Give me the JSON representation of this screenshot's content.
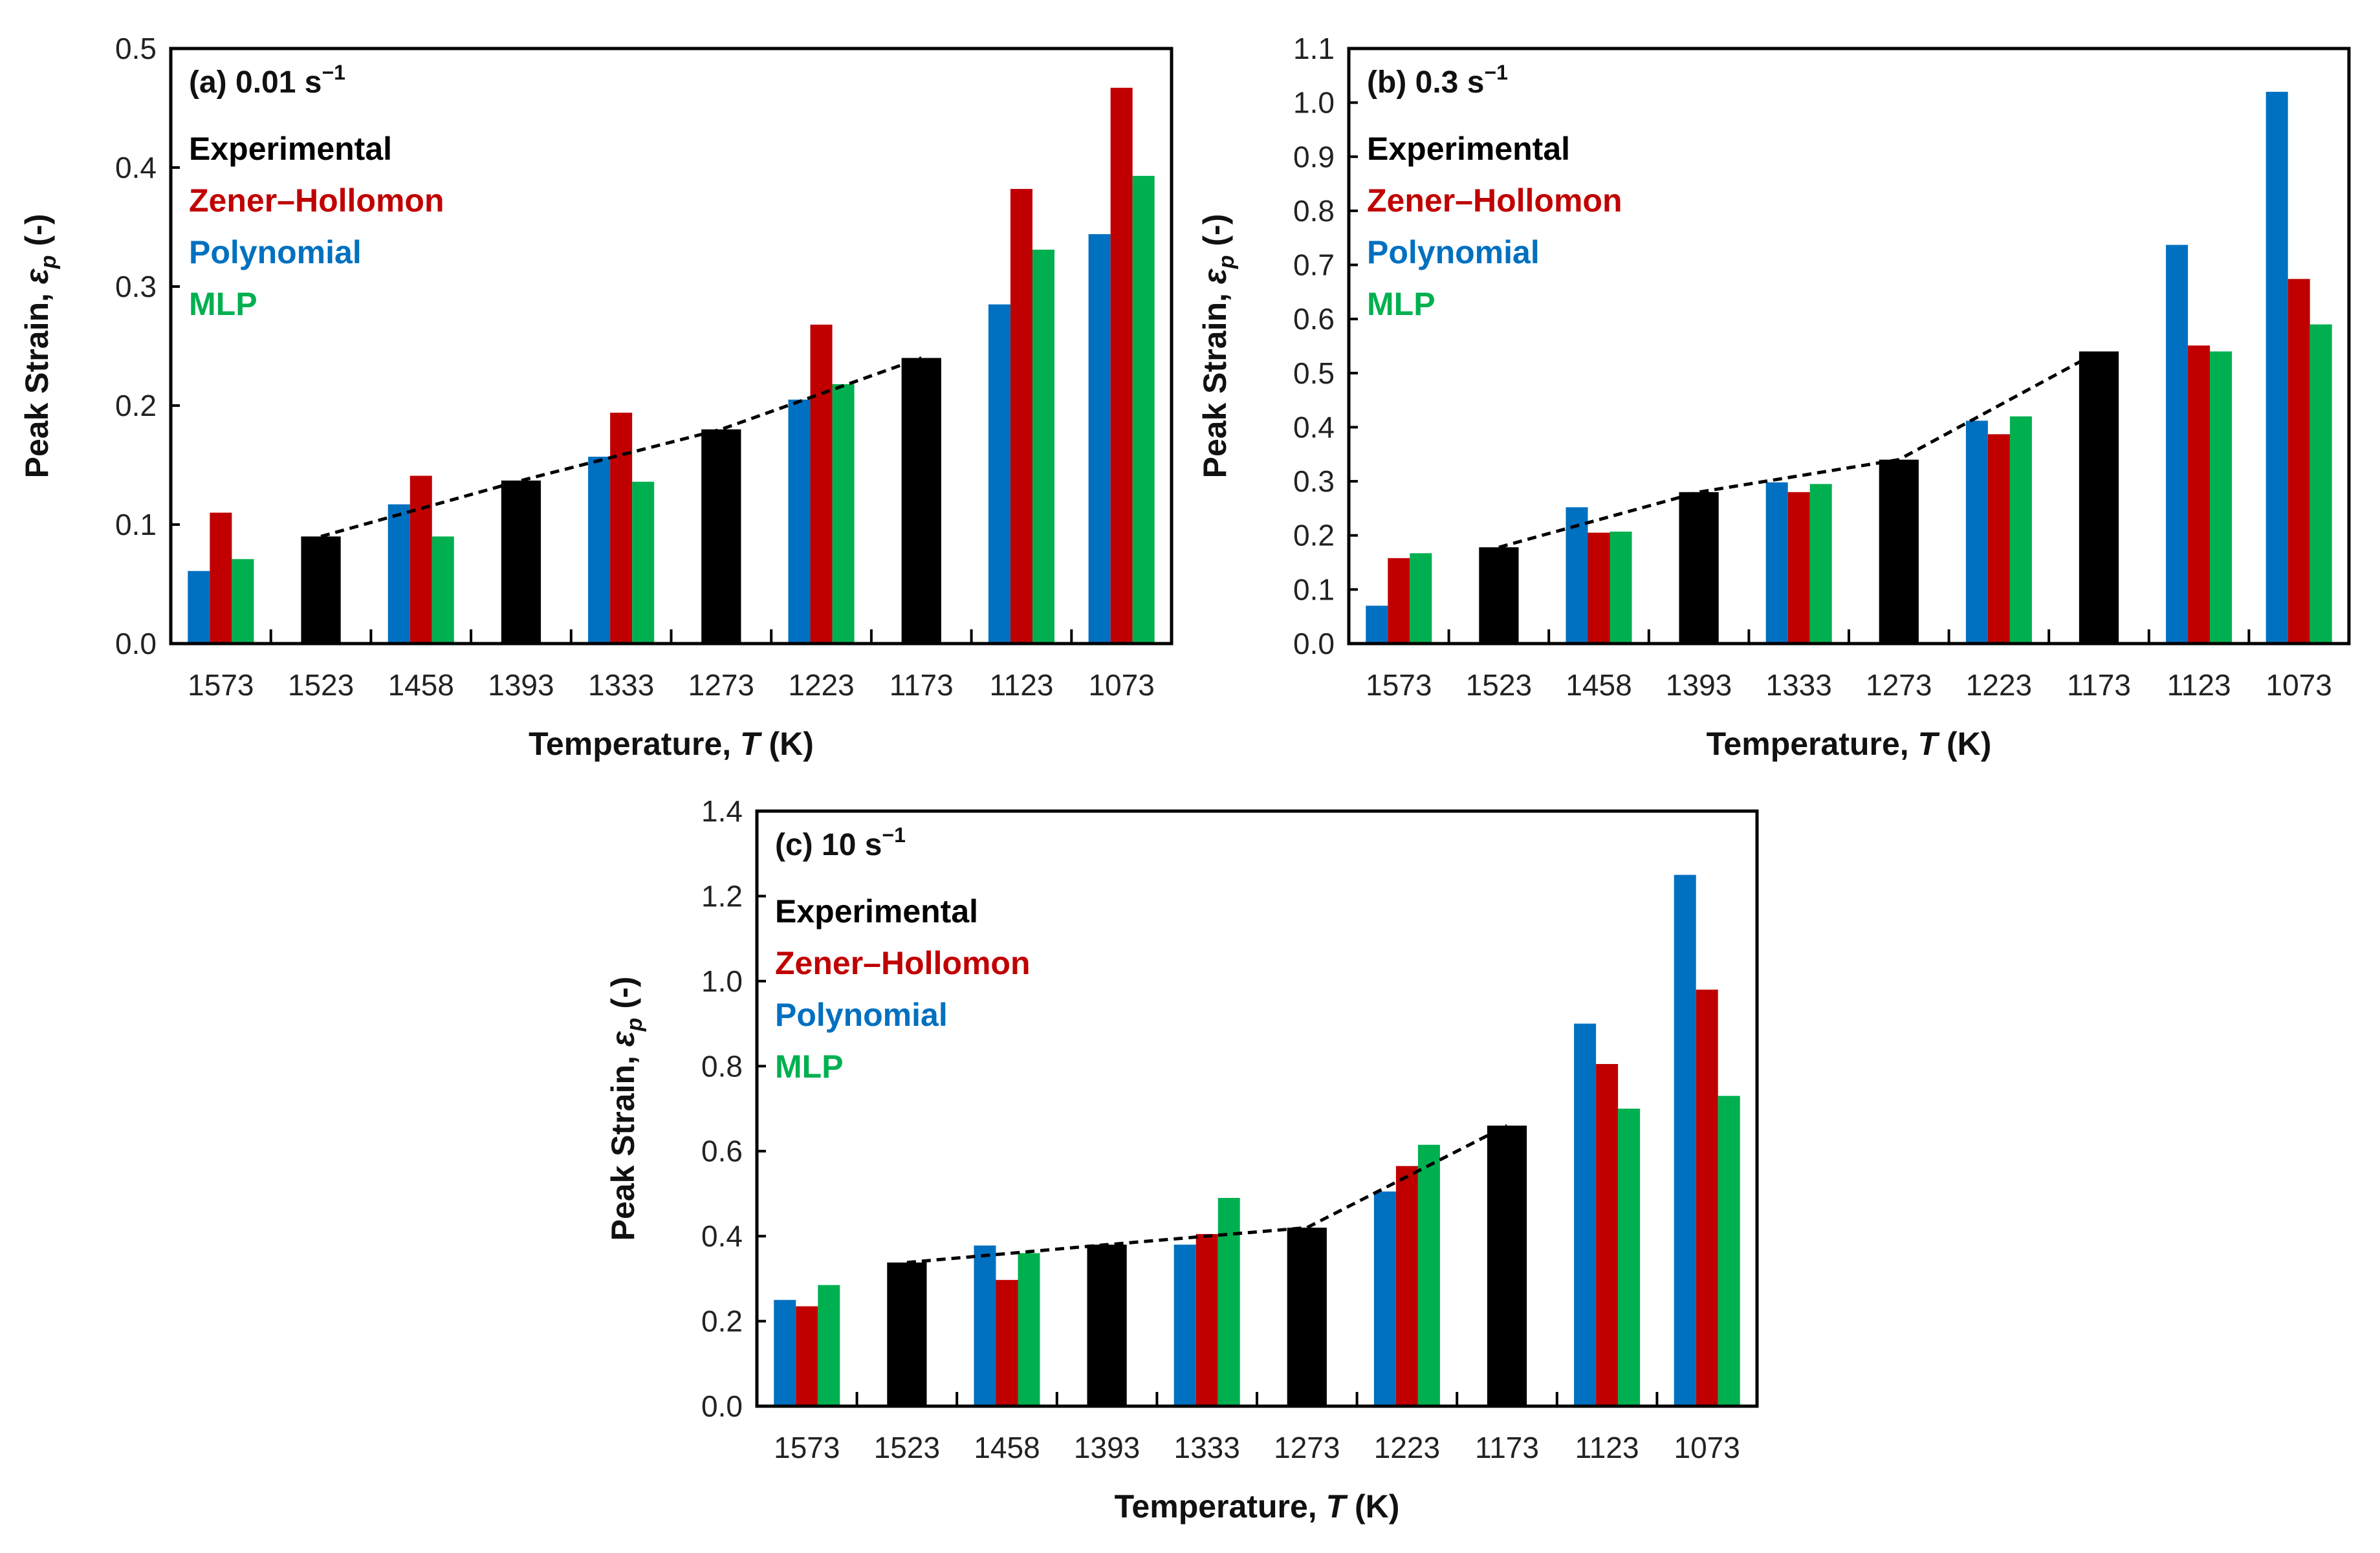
{
  "colors": {
    "Experimental": "#000000",
    "Zener–Hollomon": "#c00000",
    "Polynomial": "#0070c0",
    "MLP": "#00b050"
  },
  "chart_data": [
    {
      "type": "bar",
      "panel_label": "(a) 0.01 s",
      "panel_sup": "−1",
      "title": "(a) 0.01 s−1",
      "xlabel": {
        "pre": "Temperature, ",
        "var": "T",
        "post": " (K)"
      },
      "ylabel": {
        "pre": "Peak Strain, ",
        "var": "ε",
        "sub": "p",
        "post": " (-)"
      },
      "ylim": [
        0,
        0.5
      ],
      "yticks": [
        "0.0",
        "0.1",
        "0.2",
        "0.3",
        "0.4",
        "0.5"
      ],
      "legend": [
        "Experimental",
        "Zener–Hollomon",
        "Polynomial",
        "MLP"
      ],
      "legend_position": "top-left",
      "categories": [
        "1573",
        "1523",
        "1458",
        "1393",
        "1333",
        "1273",
        "1223",
        "1173",
        "1123",
        "1073"
      ],
      "series": [
        {
          "name": "Experimental",
          "values": [
            null,
            0.09,
            null,
            0.137,
            null,
            0.18,
            null,
            0.24,
            null,
            null
          ]
        },
        {
          "name": "Polynomial",
          "values": [
            0.061,
            null,
            0.117,
            null,
            0.157,
            null,
            0.205,
            null,
            0.285,
            0.344
          ]
        },
        {
          "name": "Zener–Hollomon",
          "values": [
            0.11,
            null,
            0.141,
            null,
            0.194,
            null,
            0.268,
            null,
            0.382,
            0.467
          ]
        },
        {
          "name": "MLP",
          "values": [
            0.071,
            null,
            0.09,
            null,
            0.136,
            null,
            0.218,
            null,
            0.331,
            0.393
          ]
        }
      ],
      "dashed_line": {
        "categories": [
          "1523",
          "1393",
          "1273",
          "1173"
        ],
        "values": [
          0.09,
          0.137,
          0.18,
          0.24
        ]
      }
    },
    {
      "type": "bar",
      "panel_label": "(b) 0.3 s",
      "panel_sup": "−1",
      "title": "(b) 0.3 s−1",
      "xlabel": {
        "pre": "Temperature, ",
        "var": "T",
        "post": " (K)"
      },
      "ylabel": {
        "pre": "Peak Strain, ",
        "var": "ε",
        "sub": "p",
        "post": " (-)"
      },
      "ylim": [
        0,
        1.1
      ],
      "yticks": [
        "0.0",
        "0.1",
        "0.2",
        "0.3",
        "0.4",
        "0.5",
        "0.6",
        "0.7",
        "0.8",
        "0.9",
        "1.0",
        "1.1"
      ],
      "legend": [
        "Experimental",
        "Zener–Hollomon",
        "Polynomial",
        "MLP"
      ],
      "legend_position": "top-left",
      "categories": [
        "1573",
        "1523",
        "1458",
        "1393",
        "1333",
        "1273",
        "1223",
        "1173",
        "1123",
        "1073"
      ],
      "series": [
        {
          "name": "Experimental",
          "values": [
            null,
            0.178,
            null,
            0.28,
            null,
            0.34,
            null,
            0.54,
            null,
            null
          ]
        },
        {
          "name": "Polynomial",
          "values": [
            0.07,
            null,
            0.252,
            null,
            0.298,
            null,
            0.412,
            null,
            0.737,
            1.02
          ]
        },
        {
          "name": "Zener–Hollomon",
          "values": [
            0.158,
            null,
            0.205,
            null,
            0.28,
            null,
            0.387,
            null,
            0.551,
            0.674
          ]
        },
        {
          "name": "MLP",
          "values": [
            0.167,
            null,
            0.207,
            null,
            0.295,
            null,
            0.42,
            null,
            0.54,
            0.59
          ]
        }
      ],
      "dashed_line": {
        "categories": [
          "1523",
          "1393",
          "1273",
          "1173"
        ],
        "values": [
          0.178,
          0.28,
          0.34,
          0.54
        ]
      }
    },
    {
      "type": "bar",
      "panel_label": "(c) 10 s",
      "panel_sup": "−1",
      "title": "(c) 10 s−1",
      "xlabel": {
        "pre": "Temperature, ",
        "var": "T",
        "post": " (K)"
      },
      "ylabel": {
        "pre": "Peak Strain, ",
        "var": "ε",
        "sub": "p",
        "post": " (-)"
      },
      "ylim": [
        0,
        1.4
      ],
      "yticks": [
        "0.0",
        "0.2",
        "0.4",
        "0.6",
        "0.8",
        "1.0",
        "1.2",
        "1.4"
      ],
      "legend": [
        "Experimental",
        "Zener–Hollomon",
        "Polynomial",
        "MLP"
      ],
      "legend_position": "top-left",
      "categories": [
        "1573",
        "1523",
        "1458",
        "1393",
        "1333",
        "1273",
        "1223",
        "1173",
        "1123",
        "1073"
      ],
      "series": [
        {
          "name": "Experimental",
          "values": [
            null,
            0.338,
            null,
            0.38,
            null,
            0.42,
            null,
            0.66,
            null,
            null
          ]
        },
        {
          "name": "Polynomial",
          "values": [
            0.25,
            null,
            0.378,
            null,
            0.38,
            null,
            0.505,
            null,
            0.9,
            1.25
          ]
        },
        {
          "name": "Zener–Hollomon",
          "values": [
            0.235,
            null,
            0.297,
            null,
            0.405,
            null,
            0.565,
            null,
            0.805,
            0.98
          ]
        },
        {
          "name": "MLP",
          "values": [
            0.285,
            null,
            0.36,
            null,
            0.49,
            null,
            0.615,
            null,
            0.7,
            0.73
          ]
        }
      ],
      "dashed_line": {
        "categories": [
          "1523",
          "1393",
          "1273",
          "1173"
        ],
        "values": [
          0.338,
          0.38,
          0.42,
          0.66
        ]
      }
    }
  ]
}
